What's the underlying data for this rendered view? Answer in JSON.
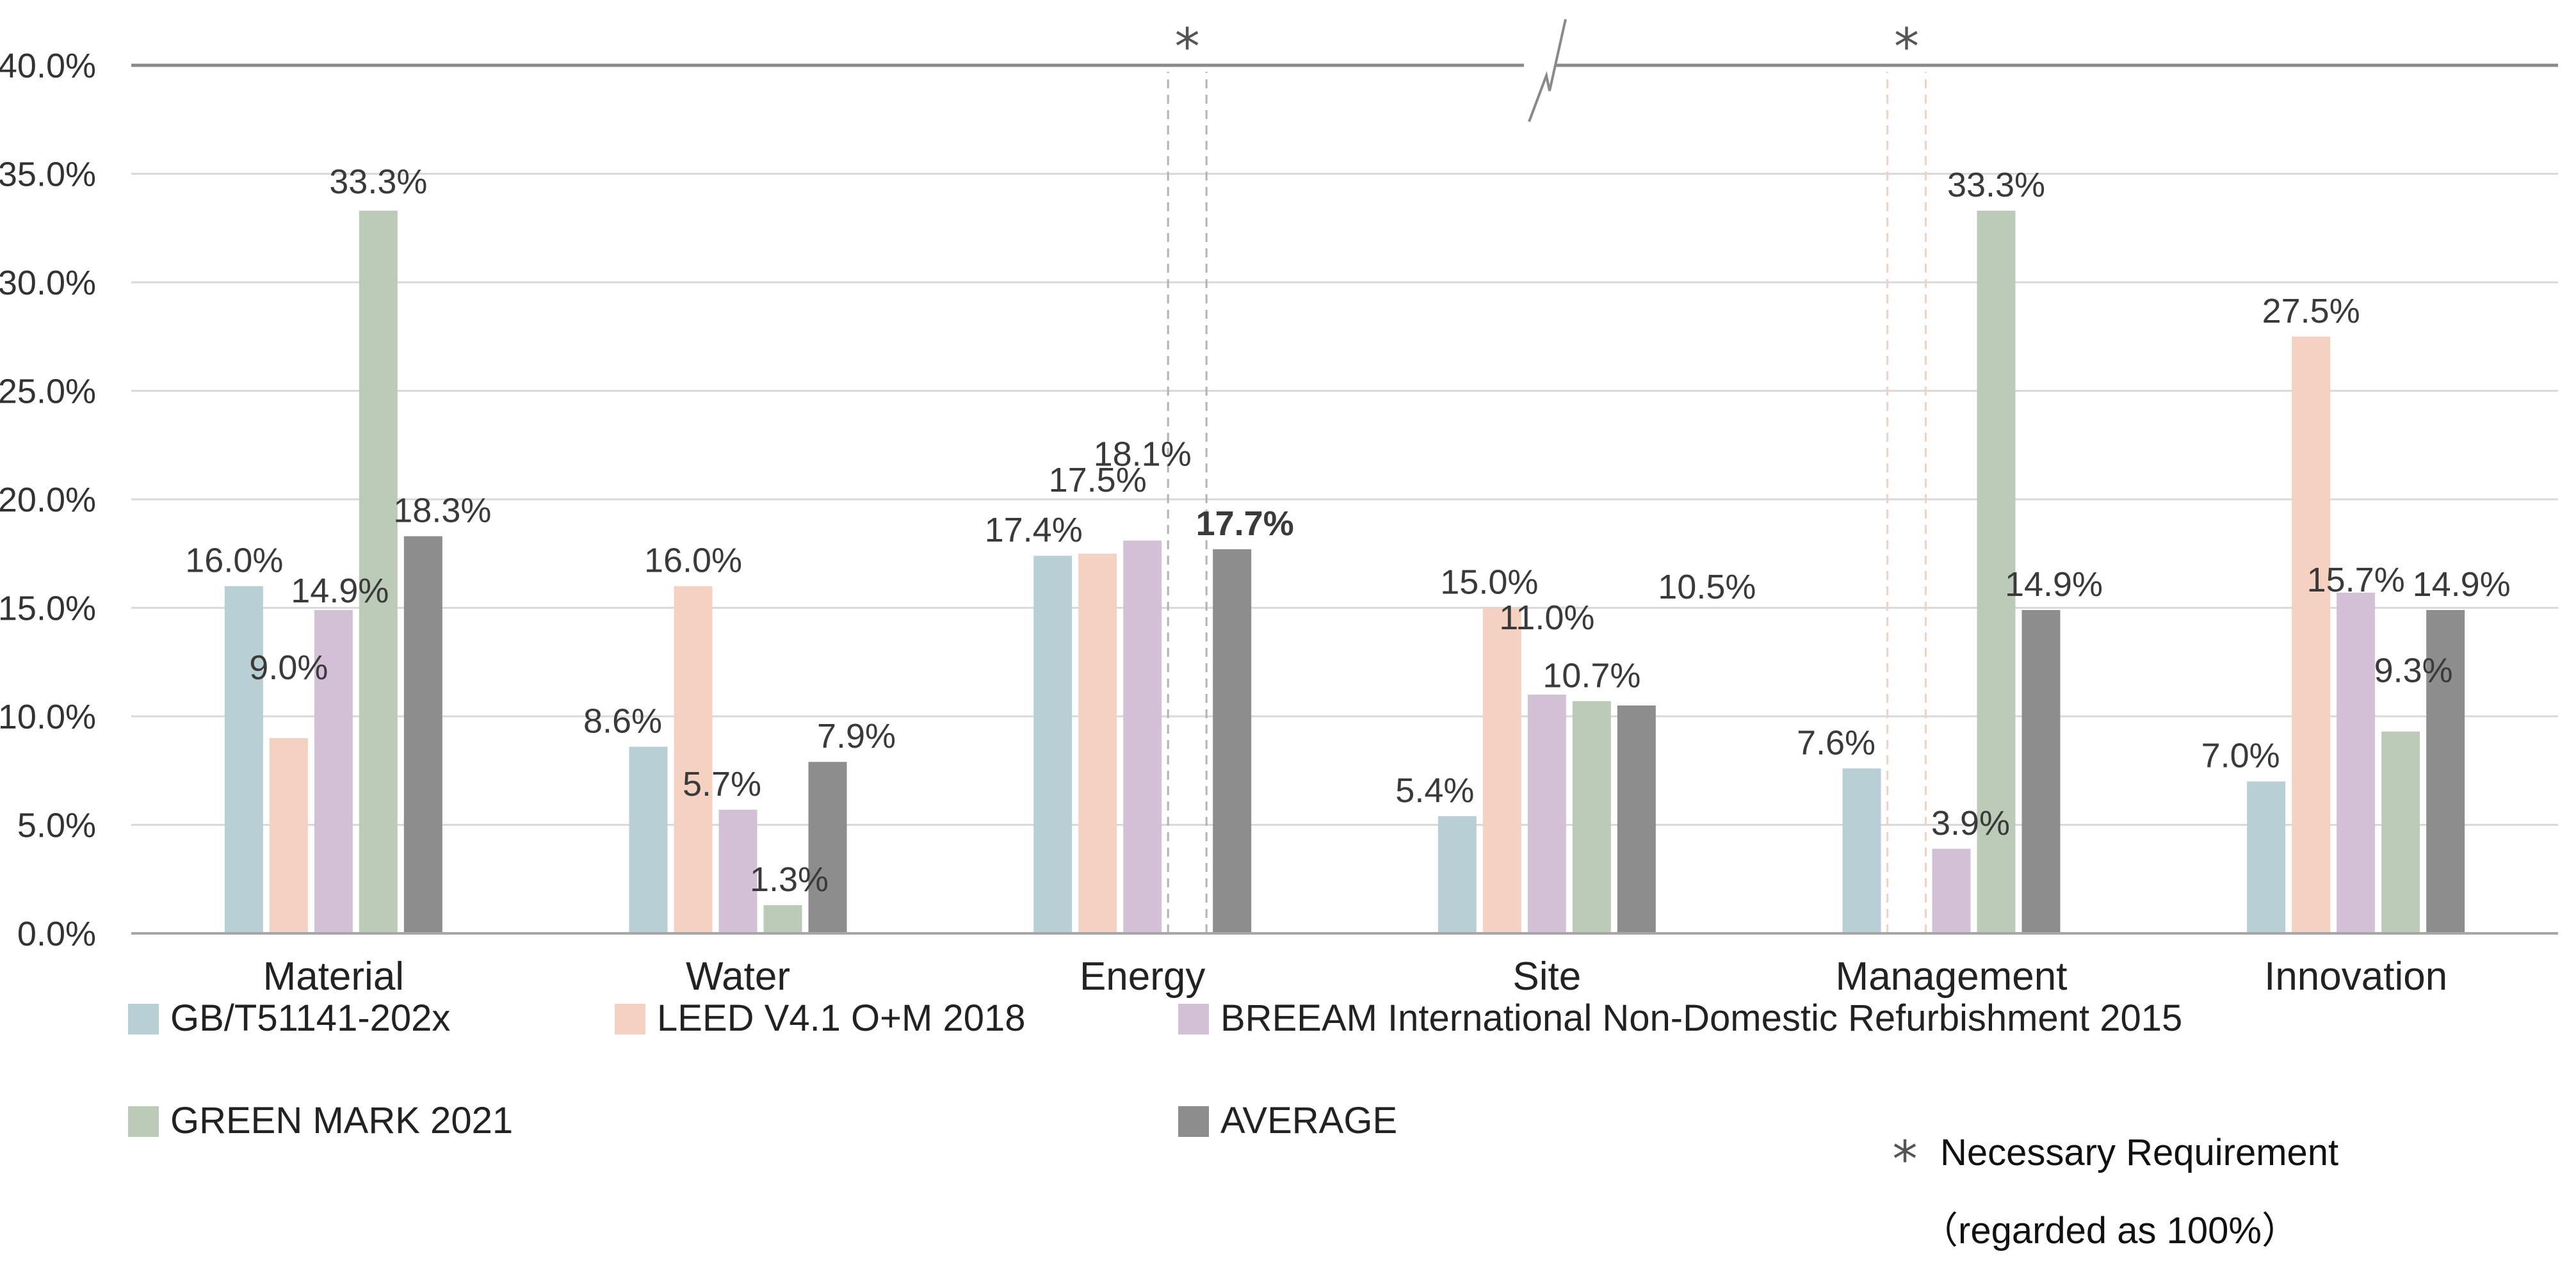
{
  "chart_data": {
    "type": "bar",
    "categories": [
      "Material",
      "Water",
      "Energy",
      "Site",
      "Management",
      "Innovation"
    ],
    "ylim": [
      0,
      40
    ],
    "yticks": [
      "0.0%",
      "5.0%",
      "10.0%",
      "15.0%",
      "20.0%",
      "25.0%",
      "30.0%",
      "35.0%",
      "40.0%"
    ],
    "grid": true,
    "series": [
      {
        "name": "GB/T51141-202x",
        "color": "#b9cfd6",
        "values": [
          16.0,
          8.6,
          17.4,
          5.4,
          7.6,
          7.0
        ],
        "labels": [
          "16.0%",
          "8.6%",
          "17.4%",
          "5.4%",
          "7.6%",
          "7.0%"
        ]
      },
      {
        "name": "LEED V4.1 O+M 2018",
        "color": "#f4d1c0",
        "values": [
          9.0,
          16.0,
          17.5,
          15.0,
          null,
          27.5
        ],
        "labels": [
          "9.0%",
          "16.0%",
          "17.5%",
          "15.0%",
          "",
          "27.5%"
        ]
      },
      {
        "name": "BREEAM  International Non-Domestic Refurbishment 2015",
        "color": "#d3bfd6",
        "values": [
          14.9,
          5.7,
          18.1,
          11.0,
          3.9,
          15.7
        ],
        "labels": [
          "14.9%",
          "5.7%",
          "18.1%",
          "11.0%",
          "3.9%",
          "15.7%"
        ]
      },
      {
        "name": "GREEN MARK 2021",
        "color": "#bccbb7",
        "values": [
          33.3,
          1.3,
          null,
          10.7,
          33.3,
          9.3
        ],
        "labels": [
          "33.3%",
          "1.3%",
          "",
          "10.7%",
          "33.3%",
          "9.3%"
        ]
      },
      {
        "name": "AVERAGE",
        "color": "#8d8d8d",
        "values": [
          18.3,
          7.9,
          17.7,
          10.5,
          14.9,
          14.9
        ],
        "labels": [
          "18.3%",
          "7.9%",
          "17.7%",
          "10.5%",
          "14.9%",
          "14.9%"
        ]
      }
    ],
    "necessary_requirement": [
      {
        "category": "Energy",
        "series": "GREEN MARK 2021",
        "marker": "*"
      },
      {
        "category": "Management",
        "series": "LEED V4.1 O+M 2018",
        "marker": "*"
      }
    ],
    "axis_break": "at 40.0% gridline",
    "legend_position": "bottom",
    "note": {
      "marker": "*",
      "line1": "Necessary Requirement",
      "line2": "（regarded as 100%）"
    }
  }
}
